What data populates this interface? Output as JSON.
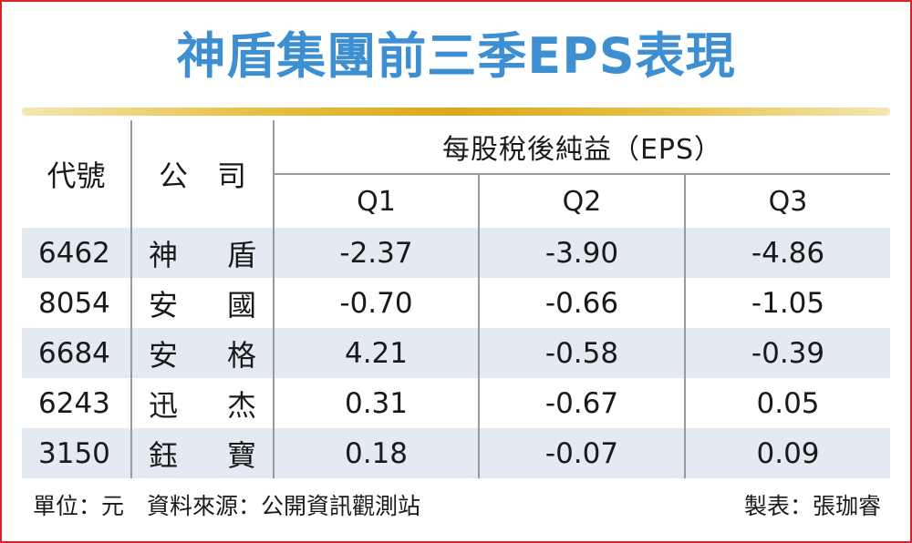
{
  "title": "神盾集團前三季EPS表現",
  "colors": {
    "title": "#3d8fd1",
    "border": "#d8232a",
    "rule": "#d9a81e",
    "row_band": "#e4eaf2"
  },
  "chart_data": {
    "type": "table",
    "headers": {
      "code": "代號",
      "company": "公　司",
      "group": "每股稅後純益（EPS）",
      "quarters": [
        "Q1",
        "Q2",
        "Q3"
      ]
    },
    "rows": [
      {
        "code": "6462",
        "name": [
          "神",
          "盾"
        ],
        "values": [
          "-2.37",
          "-3.90",
          "-4.86"
        ]
      },
      {
        "code": "8054",
        "name": [
          "安",
          "國"
        ],
        "values": [
          "-0.70",
          "-0.66",
          "-1.05"
        ]
      },
      {
        "code": "6684",
        "name": [
          "安",
          "格"
        ],
        "values": [
          "4.21",
          "-0.58",
          "-0.39"
        ]
      },
      {
        "code": "6243",
        "name": [
          "迅",
          "杰"
        ],
        "values": [
          "0.31",
          "-0.67",
          "0.05"
        ]
      },
      {
        "code": "3150",
        "name": [
          "鈺",
          "寶"
        ],
        "values": [
          "0.18",
          "-0.07",
          "0.09"
        ]
      }
    ]
  },
  "footer": {
    "source": "單位：元　資料來源：公開資訊觀測站",
    "credit": "製表：張珈睿"
  }
}
